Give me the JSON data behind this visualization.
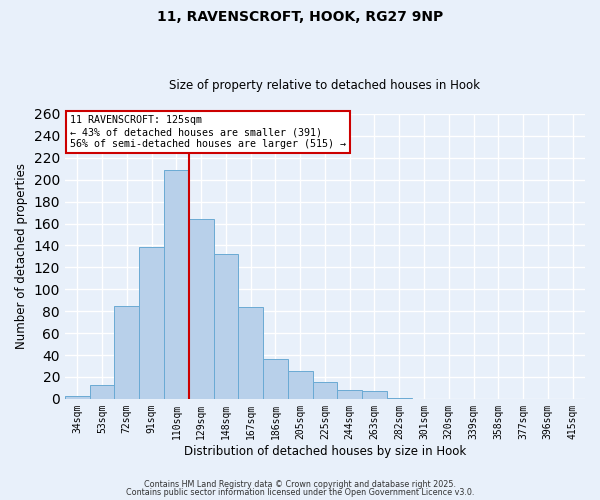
{
  "title_line1": "11, RAVENSCROFT, HOOK, RG27 9NP",
  "title_line2": "Size of property relative to detached houses in Hook",
  "xlabel": "Distribution of detached houses by size in Hook",
  "ylabel": "Number of detached properties",
  "bar_labels": [
    "34sqm",
    "53sqm",
    "72sqm",
    "91sqm",
    "110sqm",
    "129sqm",
    "148sqm",
    "167sqm",
    "186sqm",
    "205sqm",
    "225sqm",
    "244sqm",
    "263sqm",
    "282sqm",
    "301sqm",
    "320sqm",
    "339sqm",
    "358sqm",
    "377sqm",
    "396sqm",
    "415sqm"
  ],
  "bar_values": [
    3,
    13,
    85,
    139,
    209,
    164,
    132,
    84,
    36,
    25,
    15,
    8,
    7,
    1,
    0,
    0,
    0,
    0,
    0,
    0,
    0
  ],
  "bar_color": "#b8d0ea",
  "bar_edgecolor": "#6aaad4",
  "ylim": [
    0,
    260
  ],
  "yticks": [
    0,
    20,
    40,
    60,
    80,
    100,
    120,
    140,
    160,
    180,
    200,
    220,
    240,
    260
  ],
  "vline_color": "#cc0000",
  "annotation_title": "11 RAVENSCROFT: 125sqm",
  "annotation_line1": "← 43% of detached houses are smaller (391)",
  "annotation_line2": "56% of semi-detached houses are larger (515) →",
  "annotation_box_color": "#cc0000",
  "footer_line1": "Contains HM Land Registry data © Crown copyright and database right 2025.",
  "footer_line2": "Contains public sector information licensed under the Open Government Licence v3.0.",
  "background_color": "#e8f0fa",
  "grid_color": "#ffffff",
  "fig_width": 6.0,
  "fig_height": 5.0
}
